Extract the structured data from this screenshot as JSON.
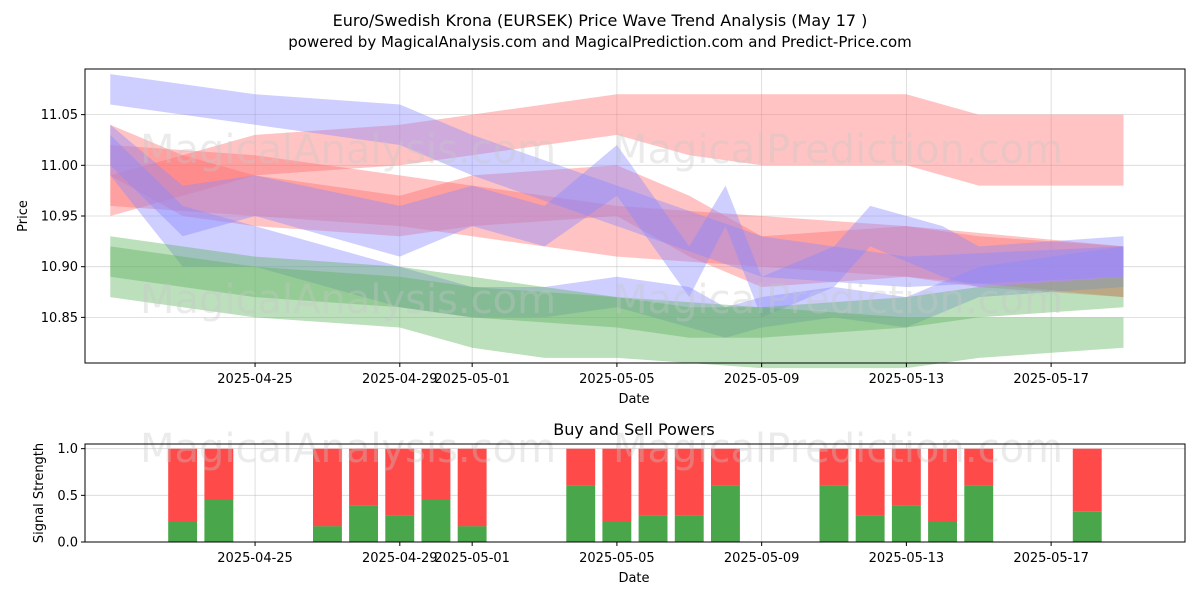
{
  "figure": {
    "title": "Euro/Swedish Krona (EURSEK) Price Wave Trend Analysis (May 17 )",
    "subtitle": "powered by MagicalAnalysis.com and MagicalPrediction.com and Predict-Price.com",
    "watermark_left": "MagicalAnalysis.com",
    "watermark_right": "MagicalPrediction.com"
  },
  "colors": {
    "red": "#ff4a4a",
    "green": "#4aa64a",
    "blue": "#6b6bff",
    "band_red": "#ff7070",
    "band_green": "#5fb25f",
    "band_blue": "#8a8aff"
  },
  "chart_data": [
    {
      "type": "area",
      "xlabel": "Date",
      "ylabel": "Price",
      "ylim": [
        10.805,
        11.095
      ],
      "xlim": [
        "2025-04-20",
        "2025-05-20"
      ],
      "xticks": [
        "2025-04-25",
        "2025-04-29",
        "2025-05-01",
        "2025-05-05",
        "2025-05-09",
        "2025-05-13",
        "2025-05-17"
      ],
      "yticks": [
        10.85,
        10.9,
        10.95,
        11.0,
        11.05
      ],
      "grid": true,
      "series": [
        {
          "color": "red",
          "x": [
            "2025-04-21",
            "2025-04-25",
            "2025-04-29",
            "2025-05-01",
            "2025-05-05",
            "2025-05-07",
            "2025-05-09",
            "2025-05-13",
            "2025-05-15",
            "2025-05-19"
          ],
          "upper": [
            10.99,
            11.03,
            11.04,
            11.05,
            11.07,
            11.07,
            11.07,
            11.07,
            11.05,
            11.05
          ],
          "lower": [
            10.95,
            10.99,
            11.0,
            11.01,
            11.03,
            11.01,
            11.0,
            11.0,
            10.98,
            10.98
          ]
        },
        {
          "color": "red",
          "x": [
            "2025-04-21",
            "2025-04-25",
            "2025-04-29",
            "2025-05-01",
            "2025-05-05",
            "2025-05-09",
            "2025-05-13",
            "2025-05-19"
          ],
          "upper": [
            11.02,
            11.01,
            10.99,
            10.98,
            10.96,
            10.95,
            10.94,
            10.92
          ],
          "lower": [
            10.96,
            10.95,
            10.94,
            10.93,
            10.91,
            10.9,
            10.89,
            10.87
          ]
        },
        {
          "color": "red",
          "x": [
            "2025-04-21",
            "2025-04-23",
            "2025-04-25",
            "2025-04-29",
            "2025-05-01",
            "2025-05-05",
            "2025-05-07",
            "2025-05-09",
            "2025-05-13",
            "2025-05-15",
            "2025-05-19"
          ],
          "upper": [
            11.04,
            11.01,
            10.99,
            10.97,
            10.99,
            11.0,
            10.97,
            10.93,
            10.94,
            10.93,
            10.92
          ],
          "lower": [
            10.99,
            10.95,
            10.94,
            10.93,
            10.94,
            10.95,
            10.91,
            10.88,
            10.89,
            10.88,
            10.87
          ]
        },
        {
          "color": "blue",
          "x": [
            "2025-04-21",
            "2025-04-25",
            "2025-04-29",
            "2025-05-01",
            "2025-05-05",
            "2025-05-09",
            "2025-05-13",
            "2025-05-19"
          ],
          "upper": [
            11.09,
            11.07,
            11.06,
            11.03,
            10.98,
            10.93,
            10.91,
            10.92
          ],
          "lower": [
            11.06,
            11.04,
            11.02,
            10.99,
            10.94,
            10.89,
            10.88,
            10.89
          ]
        },
        {
          "color": "blue",
          "x": [
            "2025-04-21",
            "2025-04-23",
            "2025-04-25",
            "2025-04-29",
            "2025-05-01",
            "2025-05-03",
            "2025-05-05",
            "2025-05-07",
            "2025-05-08",
            "2025-05-09",
            "2025-05-11",
            "2025-05-13",
            "2025-05-15",
            "2025-05-19"
          ],
          "upper": [
            11.03,
            10.96,
            10.94,
            10.9,
            10.88,
            10.88,
            10.89,
            10.88,
            10.86,
            10.87,
            10.88,
            10.87,
            10.9,
            10.92
          ],
          "lower": [
            10.99,
            10.9,
            10.9,
            10.86,
            10.85,
            10.85,
            10.86,
            10.84,
            10.83,
            10.84,
            10.85,
            10.84,
            10.87,
            10.88
          ]
        },
        {
          "color": "blue",
          "x": [
            "2025-04-21",
            "2025-04-23",
            "2025-04-25",
            "2025-04-29",
            "2025-05-01",
            "2025-05-03",
            "2025-05-05",
            "2025-05-07",
            "2025-05-08",
            "2025-05-09",
            "2025-05-11",
            "2025-05-12",
            "2025-05-14",
            "2025-05-15",
            "2025-05-19"
          ],
          "upper": [
            11.04,
            10.98,
            10.99,
            10.96,
            10.98,
            10.96,
            11.02,
            10.92,
            10.98,
            10.89,
            10.92,
            10.96,
            10.94,
            10.92,
            10.93
          ],
          "lower": [
            11.0,
            10.93,
            10.95,
            10.91,
            10.94,
            10.92,
            10.97,
            10.87,
            10.94,
            10.85,
            10.88,
            10.92,
            10.89,
            10.88,
            10.89
          ]
        },
        {
          "color": "green",
          "x": [
            "2025-04-21",
            "2025-04-25",
            "2025-04-29",
            "2025-05-01",
            "2025-05-03",
            "2025-05-05",
            "2025-05-09",
            "2025-05-13",
            "2025-05-15",
            "2025-05-19"
          ],
          "upper": [
            10.93,
            10.91,
            10.9,
            10.89,
            10.88,
            10.87,
            10.86,
            10.85,
            10.85,
            10.85
          ],
          "lower": [
            10.87,
            10.85,
            10.84,
            10.82,
            10.81,
            10.81,
            10.8,
            10.8,
            10.81,
            10.82
          ]
        },
        {
          "color": "green",
          "x": [
            "2025-04-21",
            "2025-04-25",
            "2025-04-29",
            "2025-05-01",
            "2025-05-05",
            "2025-05-07",
            "2025-05-09",
            "2025-05-13",
            "2025-05-15",
            "2025-05-19"
          ],
          "upper": [
            10.92,
            10.9,
            10.89,
            10.88,
            10.87,
            10.86,
            10.86,
            10.87,
            10.88,
            10.89
          ],
          "lower": [
            10.89,
            10.87,
            10.86,
            10.85,
            10.84,
            10.83,
            10.83,
            10.84,
            10.85,
            10.86
          ]
        }
      ]
    },
    {
      "type": "bar",
      "title": "Buy and Sell Powers",
      "xlabel": "Date",
      "ylabel": "Signal Strength",
      "ylim": [
        0,
        1.05
      ],
      "xlim": [
        "2025-04-20",
        "2025-05-20"
      ],
      "xticks": [
        "2025-04-25",
        "2025-04-29",
        "2025-05-01",
        "2025-05-05",
        "2025-05-09",
        "2025-05-13",
        "2025-05-17"
      ],
      "yticks": [
        0.0,
        0.5,
        1.0
      ],
      "grid": true,
      "x": [
        "2025-04-23",
        "2025-04-24",
        "2025-04-27",
        "2025-04-28",
        "2025-04-29",
        "2025-04-30",
        "2025-05-01",
        "2025-05-04",
        "2025-05-05",
        "2025-05-06",
        "2025-05-07",
        "2025-05-08",
        "2025-05-11",
        "2025-05-12",
        "2025-05-13",
        "2025-05-14",
        "2025-05-15",
        "2025-05-18"
      ],
      "series": [
        {
          "name": "buy",
          "color": "green",
          "values": [
            0.22,
            0.45,
            0.17,
            0.39,
            0.28,
            0.45,
            0.17,
            0.61,
            0.22,
            0.28,
            0.28,
            0.61,
            0.61,
            0.28,
            0.39,
            0.22,
            0.61,
            0.33
          ]
        },
        {
          "name": "sell",
          "color": "red",
          "values": [
            0.78,
            0.55,
            0.83,
            0.61,
            0.72,
            0.55,
            0.83,
            0.39,
            0.78,
            0.72,
            0.72,
            0.39,
            0.39,
            0.72,
            0.61,
            0.78,
            0.39,
            0.67
          ]
        }
      ]
    }
  ]
}
